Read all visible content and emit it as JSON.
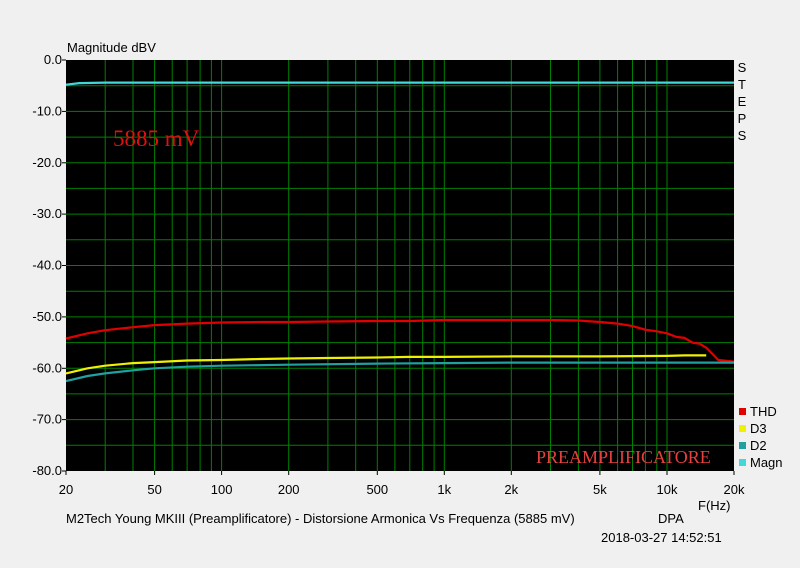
{
  "chart_data": {
    "type": "line",
    "ylabel": "Magnitude dBV",
    "xlabel": "F(Hz)",
    "x_scale": "log",
    "xlim": [
      20,
      20000
    ],
    "ylim": [
      -80,
      0
    ],
    "grid": true,
    "background": "#000000",
    "grid_color": "#008000",
    "y_ticks": [
      "0.0",
      "-10.0",
      "-20.0",
      "-30.0",
      "-40.0",
      "-50.0",
      "-60.0",
      "-70.0",
      "-80.0"
    ],
    "y_tick_values": [
      0,
      -10,
      -20,
      -30,
      -40,
      -50,
      -60,
      -70,
      -80
    ],
    "x_ticks": [
      "20",
      "50",
      "100",
      "200",
      "500",
      "1k",
      "2k",
      "5k",
      "10k",
      "20k"
    ],
    "x_tick_values": [
      20,
      50,
      100,
      200,
      500,
      1000,
      2000,
      5000,
      10000,
      20000
    ],
    "right_label": "STEPS",
    "annotations": {
      "level": "5885 mV",
      "device": "PREAMPLIFICATORE"
    },
    "series": [
      {
        "name": "THD",
        "color": "#e00000",
        "x": [
          20,
          25,
          30,
          40,
          50,
          70,
          100,
          150,
          200,
          300,
          500,
          700,
          1000,
          2000,
          3000,
          4000,
          5000,
          6000,
          7000,
          8000,
          9000,
          10000,
          11000,
          12000,
          13000,
          14000,
          15000,
          16000,
          17000,
          20000
        ],
        "y": [
          -54.2,
          -53.2,
          -52.6,
          -52.0,
          -51.6,
          -51.3,
          -51.1,
          -51.0,
          -51.0,
          -50.9,
          -50.8,
          -50.8,
          -50.6,
          -50.6,
          -50.6,
          -50.7,
          -51.0,
          -51.3,
          -51.8,
          -52.5,
          -52.8,
          -53.2,
          -53.9,
          -54.1,
          -55.0,
          -55.2,
          -56.0,
          -57.2,
          -58.4,
          -58.7
        ]
      },
      {
        "name": "D3",
        "color": "#f0f000",
        "x": [
          20,
          25,
          30,
          40,
          50,
          70,
          100,
          150,
          200,
          300,
          500,
          700,
          1000,
          2000,
          5000,
          10000,
          12000,
          15000
        ],
        "y": [
          -61.0,
          -60.0,
          -59.5,
          -59.0,
          -58.8,
          -58.5,
          -58.4,
          -58.2,
          -58.1,
          -58.0,
          -57.9,
          -57.8,
          -57.8,
          -57.7,
          -57.7,
          -57.6,
          -57.5,
          -57.5
        ]
      },
      {
        "name": "D2",
        "color": "#20a0a0",
        "x": [
          20,
          25,
          30,
          40,
          50,
          70,
          100,
          200,
          500,
          1000,
          2000,
          5000,
          10000,
          15000,
          20000
        ],
        "y": [
          -62.5,
          -61.5,
          -61.0,
          -60.4,
          -60.0,
          -59.7,
          -59.5,
          -59.3,
          -59.1,
          -59.0,
          -58.9,
          -58.9,
          -58.9,
          -58.9,
          -58.9
        ]
      },
      {
        "name": "Magn",
        "color": "#40d8d8",
        "x": [
          20,
          23,
          30,
          100,
          1000,
          10000,
          20000
        ],
        "y": [
          -4.8,
          -4.5,
          -4.4,
          -4.4,
          -4.4,
          -4.4,
          -4.4
        ]
      }
    ]
  },
  "footer": {
    "description": "M2Tech Young MKIII (Preamplificatore) - Distorsione Armonica Vs Frequenza (5885 mV)",
    "source": "DPA",
    "timestamp": "2018-03-27 14:52:51"
  }
}
